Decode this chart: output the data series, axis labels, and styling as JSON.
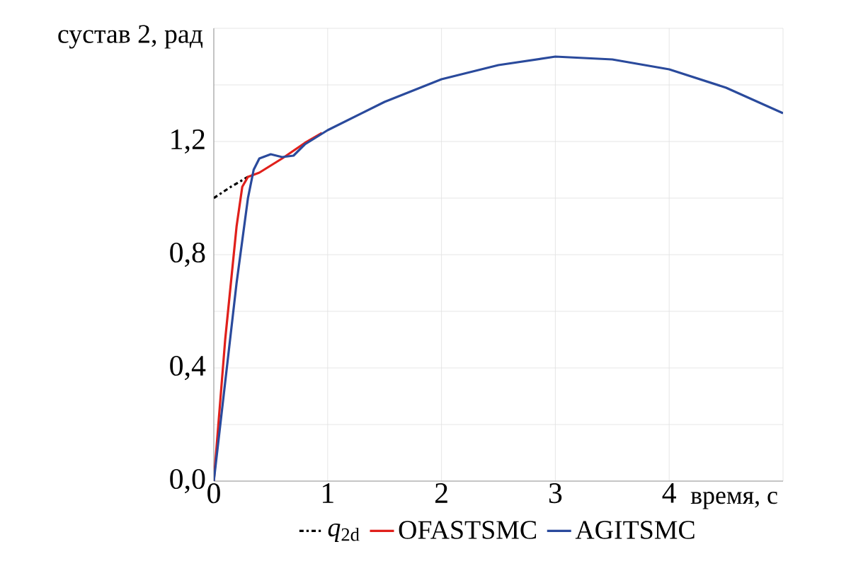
{
  "chart_data": {
    "type": "line",
    "ylabel": "сустав 2, рад",
    "xlabel": "время, с",
    "xlim": [
      0,
      5
    ],
    "xticks": [
      0,
      1,
      2,
      3,
      4,
      {
        "value": 5,
        "label": null
      }
    ],
    "ylim": [
      0,
      1.6
    ],
    "yticks": [
      {
        "value": 0,
        "label": "0,0"
      },
      {
        "value": 0.2,
        "label": null
      },
      {
        "value": 0.4,
        "label": "0,4"
      },
      {
        "value": 0.6,
        "label": null
      },
      {
        "value": 0.8,
        "label": "0,8"
      },
      {
        "value": 1.0,
        "label": null
      },
      {
        "value": 1.2,
        "label": "1,2"
      },
      {
        "value": 1.4,
        "label": null
      },
      {
        "value": 1.6,
        "label": null
      }
    ],
    "grid": true,
    "legend": "bottom",
    "marker": "none",
    "series": [
      {
        "name": "*q*$_{2d}$",
        "color": "#000000",
        "line_style": "dashed",
        "x": [
          0,
          0.15,
          0.3
        ],
        "values": [
          1.0,
          1.04,
          1.075
        ]
      },
      {
        "name": "OFASTSMC",
        "color": "#e0201b",
        "line_style": "solid",
        "x": [
          0,
          0.1,
          0.2,
          0.25,
          0.3,
          0.4,
          0.6,
          0.8,
          0.95
        ],
        "values": [
          0,
          0.5,
          0.9,
          1.04,
          1.075,
          1.09,
          1.14,
          1.195,
          1.23
        ]
      },
      {
        "name": "AGITSMC",
        "color": "#2a4a9c",
        "line_style": "solid",
        "x": [
          0,
          0.1,
          0.2,
          0.3,
          0.35,
          0.4,
          0.5,
          0.6,
          0.7,
          0.8,
          1,
          1.5,
          2,
          2.5,
          3,
          3.5,
          4,
          4.5,
          5
        ],
        "values": [
          0,
          0.35,
          0.7,
          1.0,
          1.1,
          1.14,
          1.155,
          1.145,
          1.15,
          1.19,
          1.24,
          1.34,
          1.42,
          1.47,
          1.5,
          1.49,
          1.455,
          1.39,
          1.3
        ]
      }
    ]
  }
}
